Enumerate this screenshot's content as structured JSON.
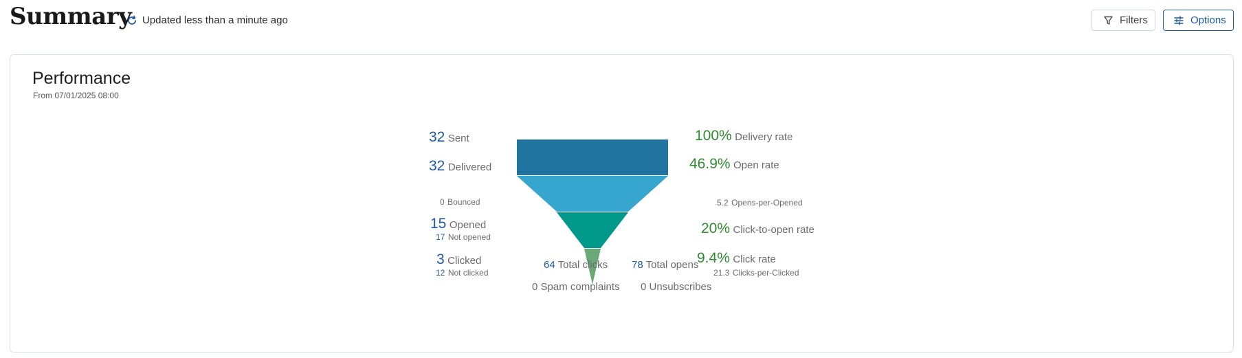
{
  "header": {
    "title": "Summary",
    "updated": "Updated less than a minute ago",
    "filters_label": "Filters",
    "options_label": "Options"
  },
  "performance": {
    "title": "Performance",
    "subtitle": "From 07/01/2025 08:00",
    "left": {
      "sent": {
        "value": "32",
        "label": "Sent"
      },
      "delivered": {
        "value": "32",
        "label": "Delivered",
        "sub_value": "0",
        "sub_label": "Bounced"
      },
      "opened": {
        "value": "15",
        "label": "Opened",
        "sub_value": "17",
        "sub_label": "Not opened"
      },
      "clicked": {
        "value": "3",
        "label": "Clicked",
        "sub_value": "12",
        "sub_label": "Not clicked"
      }
    },
    "right": {
      "delivery_rate": {
        "value": "100%",
        "label": "Delivery rate"
      },
      "open_rate": {
        "value": "46.9%",
        "label": "Open rate",
        "sub_value": "5.2",
        "sub_label": "Opens-per-Opened"
      },
      "cto_rate": {
        "value": "20%",
        "label": "Click-to-open rate"
      },
      "click_rate": {
        "value": "9.4%",
        "label": "Click rate",
        "sub_value": "21.3",
        "sub_label": "Clicks-per-Clicked"
      }
    },
    "totals": {
      "total_clicks": {
        "value": "64",
        "label": "Total clicks"
      },
      "total_opens": {
        "value": "78",
        "label": "Total opens"
      },
      "spam": {
        "value": "0",
        "label": "Spam complaints"
      },
      "unsubscribes": {
        "value": "0",
        "label": "Unsubscribes"
      }
    },
    "funnel_colors": [
      "#2174a0",
      "#36a6cf",
      "#00998a",
      "#6aa977"
    ]
  }
}
